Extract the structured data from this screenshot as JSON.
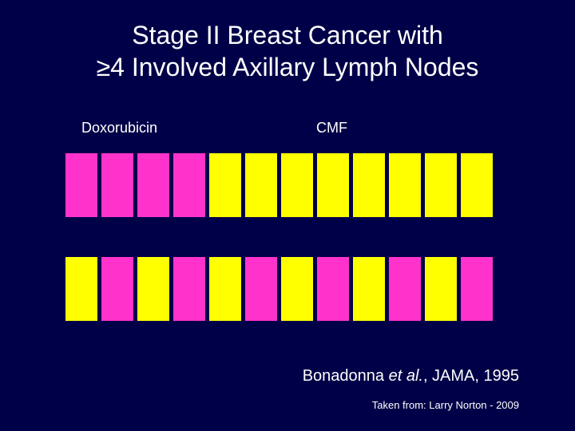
{
  "slide": {
    "background_color": "#000048",
    "title": {
      "line1": "Stage II Breast Cancer with",
      "line2": "≥4 Involved Axillary Lymph Nodes",
      "fontsize": 32,
      "color": "#ffffff"
    },
    "labels": {
      "doxorubicin": "Doxorubicin",
      "cmf": "CMF",
      "fontsize": 18,
      "color": "#ffffff"
    },
    "colors": {
      "doxorubicin": "#ff33cc",
      "cmf": "#ffff00"
    },
    "block": {
      "width": 40,
      "height": 80,
      "gap": 5
    },
    "rows": [
      {
        "type": "sequential",
        "pattern": [
          "doxorubicin",
          "doxorubicin",
          "doxorubicin",
          "doxorubicin",
          "cmf",
          "cmf",
          "cmf",
          "cmf",
          "cmf",
          "cmf",
          "cmf",
          "cmf"
        ]
      },
      {
        "type": "alternating",
        "pattern": [
          "cmf",
          "doxorubicin",
          "cmf",
          "doxorubicin",
          "cmf",
          "doxorubicin",
          "cmf",
          "doxorubicin",
          "cmf",
          "doxorubicin",
          "cmf",
          "doxorubicin"
        ]
      }
    ],
    "citation": {
      "author": "Bonadonna ",
      "etal": "et al.",
      "rest": ", JAMA, 1995",
      "fontsize": 20,
      "color": "#ffffff"
    },
    "footer": {
      "text": "Taken from: Larry Norton - 2009",
      "fontsize": 13,
      "color": "#ffffff"
    }
  }
}
